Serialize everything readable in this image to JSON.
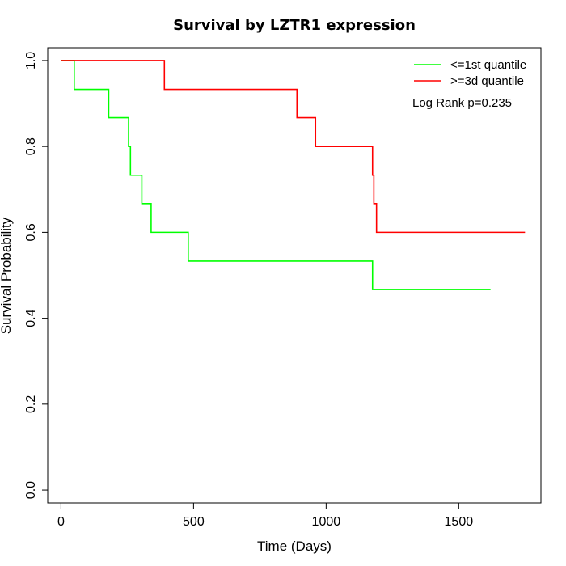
{
  "chart_data": {
    "type": "line",
    "step": true,
    "title": "Survival by LZTR1 expression",
    "xlabel": "Time (Days)",
    "ylabel": "Survival Probability",
    "xlim": [
      -50,
      1810
    ],
    "ylim": [
      -0.03,
      1.03
    ],
    "xticks": [
      0,
      500,
      1000,
      1500
    ],
    "xtick_labels": [
      "0",
      "500",
      "1000",
      "1500"
    ],
    "yticks": [
      0,
      0.2,
      0.4,
      0.6,
      0.8,
      1.0
    ],
    "ytick_labels": [
      "0.0",
      "0.2",
      "0.4",
      "0.6",
      "0.8",
      "1.0"
    ],
    "grid": false,
    "legend_position": "top-right",
    "annotation": "Log Rank p=0.235",
    "series": [
      {
        "name": "<=1st quantile",
        "color": "#00ff00",
        "x": [
          0,
          50,
          180,
          255,
          262,
          305,
          340,
          480,
          1175,
          1620
        ],
        "y": [
          1.0,
          0.933,
          0.867,
          0.8,
          0.733,
          0.667,
          0.6,
          0.533,
          0.467,
          0.467
        ]
      },
      {
        "name": ">=3d quantile",
        "color": "#ff0000",
        "x": [
          0,
          390,
          890,
          960,
          1175,
          1180,
          1190,
          1750
        ],
        "y": [
          1.0,
          0.933,
          0.867,
          0.8,
          0.733,
          0.667,
          0.6,
          0.6
        ]
      }
    ]
  }
}
